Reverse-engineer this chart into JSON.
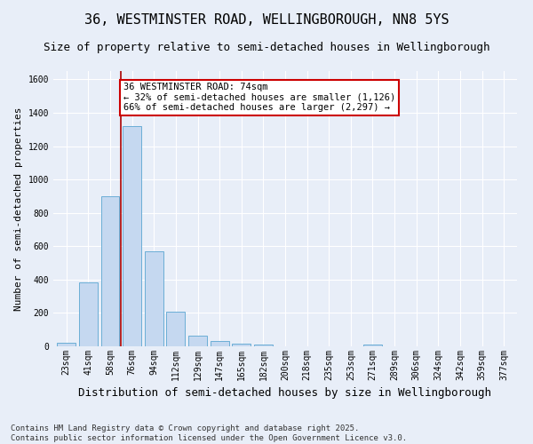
{
  "title": "36, WESTMINSTER ROAD, WELLINGBOROUGH, NN8 5YS",
  "subtitle": "Size of property relative to semi-detached houses in Wellingborough",
  "xlabel": "Distribution of semi-detached houses by size in Wellingborough",
  "ylabel": "Number of semi-detached properties",
  "categories": [
    "23sqm",
    "41sqm",
    "58sqm",
    "76sqm",
    "94sqm",
    "112sqm",
    "129sqm",
    "147sqm",
    "165sqm",
    "182sqm",
    "200sqm",
    "218sqm",
    "235sqm",
    "253sqm",
    "271sqm",
    "289sqm",
    "306sqm",
    "324sqm",
    "342sqm",
    "359sqm",
    "377sqm"
  ],
  "values": [
    20,
    385,
    900,
    1320,
    570,
    205,
    65,
    30,
    18,
    8,
    0,
    0,
    0,
    0,
    10,
    0,
    0,
    0,
    0,
    0,
    0
  ],
  "bar_color": "#c5d8f0",
  "bar_edge_color": "#6baed6",
  "vline_x": 2.5,
  "vline_color": "#aa0000",
  "annotation_text": "36 WESTMINSTER ROAD: 74sqm\n← 32% of semi-detached houses are smaller (1,126)\n66% of semi-detached houses are larger (2,297) →",
  "annotation_box_color": "#ffffff",
  "annotation_box_edge": "#cc0000",
  "ylim": [
    0,
    1650
  ],
  "yticks": [
    0,
    200,
    400,
    600,
    800,
    1000,
    1200,
    1400,
    1600
  ],
  "background_color": "#e8eef8",
  "grid_color": "#ffffff",
  "footer_line1": "Contains HM Land Registry data © Crown copyright and database right 2025.",
  "footer_line2": "Contains public sector information licensed under the Open Government Licence v3.0.",
  "title_fontsize": 11,
  "subtitle_fontsize": 9,
  "xlabel_fontsize": 9,
  "ylabel_fontsize": 8,
  "tick_fontsize": 7,
  "annotation_fontsize": 7.5,
  "footer_fontsize": 6.5
}
